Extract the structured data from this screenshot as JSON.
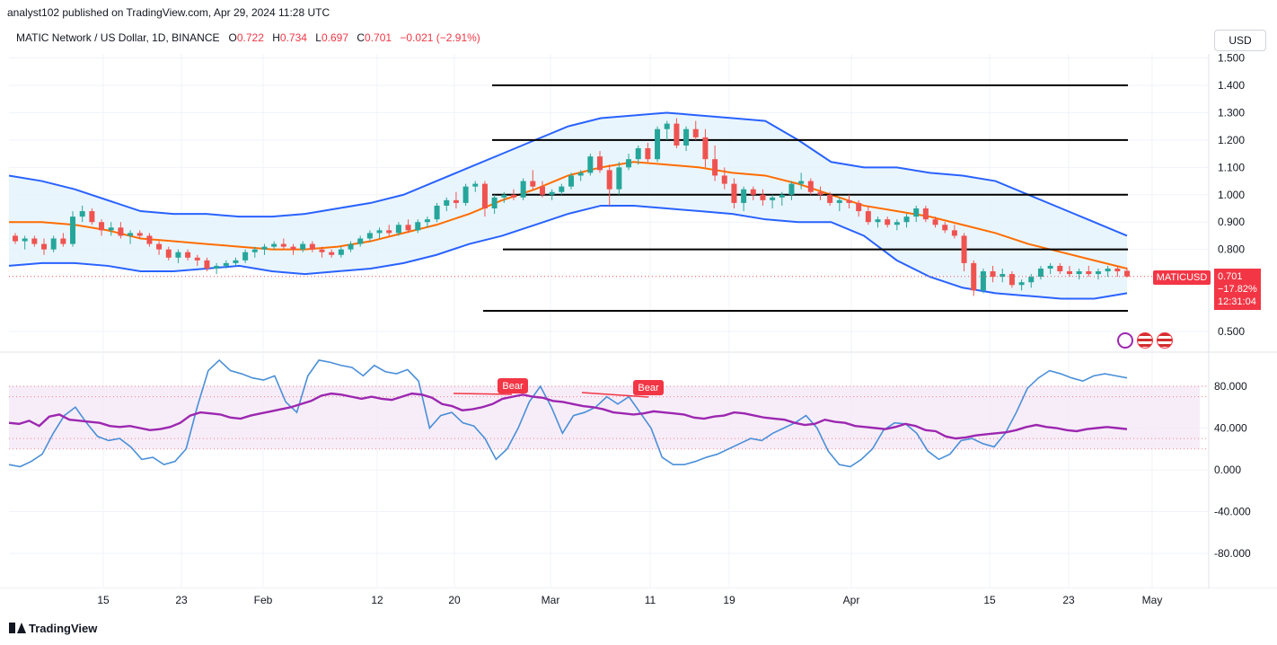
{
  "header": {
    "publisher": "analyst102 published on TradingView.com, Apr 29, 2024 11:28 UTC",
    "symbol": "MATIC Network / US Dollar, 1D, BINANCE",
    "open_label": "O",
    "open": "0.722",
    "high_label": "H",
    "high": "0.734",
    "low_label": "L",
    "low": "0.697",
    "close_label": "C",
    "close": "0.701",
    "change": "−0.021 (−2.91%)"
  },
  "currency": "USD",
  "price_tag": {
    "symbol": "MATICUSD",
    "price": "0.701",
    "change_pct": "−17.82%",
    "countdown": "12:31:04"
  },
  "footer": {
    "brand": "TradingView"
  },
  "colors": {
    "up": "#26a69a",
    "down": "#ef5350",
    "bb_band": "#2962ff",
    "bb_basis": "#ff6d00",
    "bb_fill": "#e3f2fd",
    "rsi": "#9c27b0",
    "stoch": "#4a8fd8",
    "bear": "#f23645"
  },
  "chart_data": [
    {
      "type": "candlestick",
      "name": "MATICUSD 1D",
      "y_ticks": [
        "1.500",
        "1.400",
        "1.300",
        "1.200",
        "1.100",
        "1.000",
        "0.900",
        "0.800",
        "0.500"
      ],
      "x_ticks": [
        "15",
        "23",
        "Feb",
        "12",
        "20",
        "Mar",
        "11",
        "19",
        "Apr",
        "15",
        "23",
        "May"
      ],
      "ylim": [
        0.45,
        1.5
      ],
      "ohlc": [
        [
          0.85,
          0.86,
          0.82,
          0.83
        ],
        [
          0.83,
          0.85,
          0.8,
          0.84
        ],
        [
          0.84,
          0.85,
          0.81,
          0.82
        ],
        [
          0.82,
          0.84,
          0.78,
          0.8
        ],
        [
          0.8,
          0.85,
          0.79,
          0.84
        ],
        [
          0.84,
          0.86,
          0.81,
          0.82
        ],
        [
          0.82,
          0.94,
          0.81,
          0.92
        ],
        [
          0.92,
          0.96,
          0.9,
          0.94
        ],
        [
          0.94,
          0.95,
          0.89,
          0.9
        ],
        [
          0.9,
          0.91,
          0.85,
          0.87
        ],
        [
          0.87,
          0.9,
          0.85,
          0.88
        ],
        [
          0.88,
          0.9,
          0.84,
          0.85
        ],
        [
          0.85,
          0.87,
          0.82,
          0.86
        ],
        [
          0.86,
          0.87,
          0.84,
          0.85
        ],
        [
          0.85,
          0.86,
          0.81,
          0.82
        ],
        [
          0.82,
          0.83,
          0.78,
          0.8
        ],
        [
          0.8,
          0.81,
          0.76,
          0.77
        ],
        [
          0.77,
          0.8,
          0.75,
          0.79
        ],
        [
          0.79,
          0.8,
          0.76,
          0.77
        ],
        [
          0.77,
          0.78,
          0.74,
          0.76
        ],
        [
          0.76,
          0.77,
          0.72,
          0.73
        ],
        [
          0.73,
          0.75,
          0.71,
          0.74
        ],
        [
          0.74,
          0.76,
          0.73,
          0.75
        ],
        [
          0.75,
          0.77,
          0.74,
          0.76
        ],
        [
          0.76,
          0.8,
          0.75,
          0.79
        ],
        [
          0.79,
          0.81,
          0.77,
          0.8
        ],
        [
          0.8,
          0.82,
          0.78,
          0.81
        ],
        [
          0.81,
          0.83,
          0.8,
          0.82
        ],
        [
          0.82,
          0.84,
          0.8,
          0.81
        ],
        [
          0.81,
          0.82,
          0.78,
          0.8
        ],
        [
          0.8,
          0.83,
          0.79,
          0.82
        ],
        [
          0.82,
          0.83,
          0.79,
          0.8
        ],
        [
          0.8,
          0.81,
          0.77,
          0.79
        ],
        [
          0.79,
          0.8,
          0.77,
          0.78
        ],
        [
          0.78,
          0.81,
          0.77,
          0.8
        ],
        [
          0.8,
          0.83,
          0.79,
          0.82
        ],
        [
          0.82,
          0.85,
          0.81,
          0.84
        ],
        [
          0.84,
          0.87,
          0.83,
          0.86
        ],
        [
          0.86,
          0.88,
          0.84,
          0.87
        ],
        [
          0.87,
          0.89,
          0.85,
          0.86
        ],
        [
          0.86,
          0.9,
          0.85,
          0.89
        ],
        [
          0.89,
          0.91,
          0.86,
          0.87
        ],
        [
          0.87,
          0.91,
          0.86,
          0.9
        ],
        [
          0.9,
          0.92,
          0.88,
          0.91
        ],
        [
          0.91,
          0.97,
          0.9,
          0.96
        ],
        [
          0.96,
          0.99,
          0.94,
          0.98
        ],
        [
          0.98,
          1.01,
          0.95,
          0.97
        ],
        [
          0.97,
          1.04,
          0.96,
          1.03
        ],
        [
          1.03,
          1.05,
          1.01,
          1.04
        ],
        [
          1.04,
          1.05,
          0.92,
          0.95
        ],
        [
          0.95,
          1.0,
          0.93,
          0.99
        ],
        [
          0.99,
          1.01,
          0.97,
          1.0
        ],
        [
          1.0,
          1.02,
          0.98,
          0.99
        ],
        [
          0.99,
          1.06,
          0.98,
          1.05
        ],
        [
          1.05,
          1.09,
          1.02,
          1.03
        ],
        [
          1.03,
          1.05,
          0.99,
          1.0
        ],
        [
          1.0,
          1.02,
          0.98,
          1.01
        ],
        [
          1.01,
          1.04,
          1.0,
          1.03
        ],
        [
          1.03,
          1.08,
          1.02,
          1.07
        ],
        [
          1.07,
          1.09,
          1.05,
          1.08
        ],
        [
          1.08,
          1.15,
          1.07,
          1.14
        ],
        [
          1.14,
          1.16,
          1.08,
          1.09
        ],
        [
          1.09,
          1.11,
          0.96,
          1.02
        ],
        [
          1.02,
          1.12,
          1.0,
          1.1
        ],
        [
          1.1,
          1.15,
          1.09,
          1.13
        ],
        [
          1.13,
          1.18,
          1.11,
          1.17
        ],
        [
          1.17,
          1.19,
          1.12,
          1.13
        ],
        [
          1.13,
          1.25,
          1.12,
          1.24
        ],
        [
          1.24,
          1.27,
          1.2,
          1.26
        ],
        [
          1.26,
          1.28,
          1.17,
          1.18
        ],
        [
          1.18,
          1.25,
          1.16,
          1.24
        ],
        [
          1.24,
          1.27,
          1.2,
          1.21
        ],
        [
          1.21,
          1.24,
          1.1,
          1.13
        ],
        [
          1.13,
          1.18,
          1.05,
          1.07
        ],
        [
          1.07,
          1.1,
          1.02,
          1.04
        ],
        [
          1.04,
          1.06,
          0.95,
          0.97
        ],
        [
          0.97,
          1.03,
          0.94,
          1.02
        ],
        [
          1.02,
          1.03,
          0.98,
          1.0
        ],
        [
          1.0,
          1.02,
          0.96,
          0.98
        ],
        [
          0.98,
          1.0,
          0.95,
          0.99
        ],
        [
          0.99,
          1.01,
          0.96,
          1.0
        ],
        [
          1.0,
          1.05,
          0.98,
          1.04
        ],
        [
          1.04,
          1.08,
          1.02,
          1.05
        ],
        [
          1.05,
          1.06,
          1.0,
          1.01
        ],
        [
          1.01,
          1.03,
          0.98,
          1.0
        ],
        [
          1.0,
          1.01,
          0.96,
          0.97
        ],
        [
          0.97,
          0.99,
          0.94,
          0.98
        ],
        [
          0.98,
          1.0,
          0.95,
          0.97
        ],
        [
          0.97,
          0.98,
          0.92,
          0.94
        ],
        [
          0.94,
          0.96,
          0.89,
          0.9
        ],
        [
          0.9,
          0.92,
          0.88,
          0.91
        ],
        [
          0.91,
          0.92,
          0.88,
          0.89
        ],
        [
          0.89,
          0.91,
          0.87,
          0.9
        ],
        [
          0.9,
          0.93,
          0.88,
          0.92
        ],
        [
          0.92,
          0.96,
          0.9,
          0.95
        ],
        [
          0.95,
          0.96,
          0.9,
          0.91
        ],
        [
          0.91,
          0.92,
          0.88,
          0.89
        ],
        [
          0.89,
          0.9,
          0.86,
          0.87
        ],
        [
          0.87,
          0.89,
          0.84,
          0.85
        ],
        [
          0.85,
          0.86,
          0.72,
          0.75
        ],
        [
          0.75,
          0.76,
          0.63,
          0.65
        ],
        [
          0.65,
          0.73,
          0.64,
          0.72
        ],
        [
          0.72,
          0.74,
          0.68,
          0.7
        ],
        [
          0.7,
          0.73,
          0.68,
          0.71
        ],
        [
          0.71,
          0.72,
          0.66,
          0.67
        ],
        [
          0.67,
          0.69,
          0.65,
          0.68
        ],
        [
          0.68,
          0.71,
          0.66,
          0.7
        ],
        [
          0.7,
          0.74,
          0.69,
          0.73
        ],
        [
          0.73,
          0.75,
          0.71,
          0.74
        ],
        [
          0.74,
          0.75,
          0.71,
          0.72
        ],
        [
          0.72,
          0.74,
          0.7,
          0.71
        ],
        [
          0.71,
          0.73,
          0.69,
          0.72
        ],
        [
          0.72,
          0.74,
          0.7,
          0.71
        ],
        [
          0.71,
          0.73,
          0.69,
          0.72
        ],
        [
          0.72,
          0.74,
          0.7,
          0.73
        ],
        [
          0.73,
          0.74,
          0.7,
          0.72
        ],
        [
          0.722,
          0.734,
          0.697,
          0.701
        ]
      ],
      "bollinger": {
        "upper": [
          1.07,
          1.05,
          1.02,
          0.98,
          0.94,
          0.93,
          0.93,
          0.92,
          0.92,
          0.93,
          0.95,
          0.97,
          1.0,
          1.05,
          1.1,
          1.15,
          1.2,
          1.25,
          1.28,
          1.29,
          1.3,
          1.29,
          1.28,
          1.27,
          1.2,
          1.12,
          1.1,
          1.1,
          1.08,
          1.07,
          1.05,
          1.0,
          0.95,
          0.9,
          0.85
        ],
        "basis": [
          0.9,
          0.9,
          0.89,
          0.87,
          0.84,
          0.83,
          0.82,
          0.81,
          0.8,
          0.8,
          0.81,
          0.83,
          0.86,
          0.89,
          0.93,
          0.98,
          1.02,
          1.07,
          1.1,
          1.12,
          1.11,
          1.1,
          1.08,
          1.07,
          1.04,
          1.0,
          0.96,
          0.94,
          0.92,
          0.89,
          0.86,
          0.82,
          0.79,
          0.76,
          0.73
        ],
        "lower": [
          0.74,
          0.75,
          0.75,
          0.74,
          0.72,
          0.72,
          0.73,
          0.74,
          0.72,
          0.71,
          0.72,
          0.73,
          0.75,
          0.78,
          0.82,
          0.85,
          0.89,
          0.93,
          0.96,
          0.96,
          0.95,
          0.94,
          0.93,
          0.91,
          0.9,
          0.9,
          0.85,
          0.76,
          0.7,
          0.66,
          0.64,
          0.63,
          0.62,
          0.62,
          0.64
        ]
      },
      "horizontal_levels": [
        1.4,
        1.2,
        1.0,
        0.8,
        0.6
      ],
      "last_price": 0.701
    },
    {
      "type": "line",
      "name": "Oscillator",
      "y_ticks": [
        "80.000",
        "40.000",
        "0.000",
        "-40.000",
        "-80.000"
      ],
      "ylim": [
        -100,
        120
      ],
      "bands": [
        20,
        30,
        70,
        80
      ],
      "annotations": [
        "Bear",
        "Bear"
      ],
      "series": [
        {
          "color": "rsi",
          "values": [
            45,
            44,
            47,
            42,
            51,
            53,
            48,
            47,
            46,
            45,
            42,
            41,
            42,
            40,
            38,
            39,
            41,
            45,
            52,
            55,
            54,
            53,
            50,
            49,
            52,
            54,
            56,
            58,
            60,
            63,
            66,
            71,
            73,
            72,
            70,
            68,
            70,
            68,
            67,
            70,
            73,
            72,
            69,
            63,
            61,
            57,
            58,
            60,
            63,
            68,
            70,
            72,
            70,
            69,
            66,
            65,
            63,
            61,
            60,
            58,
            55,
            54,
            53,
            54,
            56,
            55,
            54,
            53,
            50,
            49,
            51,
            52,
            55,
            54,
            52,
            50,
            49,
            48,
            45,
            43,
            44,
            48,
            46,
            45,
            42,
            41,
            40,
            39,
            41,
            44,
            42,
            38,
            37,
            32,
            30,
            31,
            33,
            34,
            35,
            36,
            38,
            41,
            43,
            41,
            40,
            38,
            37,
            39,
            40,
            41,
            40,
            39
          ]
        },
        {
          "color": "stoch",
          "values": [
            5,
            3,
            8,
            15,
            35,
            52,
            60,
            45,
            32,
            28,
            30,
            22,
            10,
            12,
            5,
            8,
            20,
            60,
            95,
            105,
            95,
            92,
            88,
            86,
            90,
            65,
            55,
            90,
            105,
            103,
            100,
            98,
            90,
            100,
            94,
            92,
            96,
            85,
            40,
            52,
            55,
            45,
            42,
            30,
            10,
            20,
            40,
            65,
            80,
            60,
            35,
            52,
            55,
            60,
            70,
            63,
            70,
            55,
            40,
            12,
            5,
            5,
            8,
            12,
            15,
            20,
            25,
            30,
            28,
            35,
            40,
            45,
            52,
            40,
            18,
            5,
            3,
            10,
            20,
            38,
            45,
            44,
            35,
            18,
            10,
            15,
            28,
            30,
            25,
            22,
            35,
            55,
            78,
            88,
            95,
            92,
            88,
            85,
            90,
            92,
            90,
            88
          ]
        }
      ]
    }
  ]
}
